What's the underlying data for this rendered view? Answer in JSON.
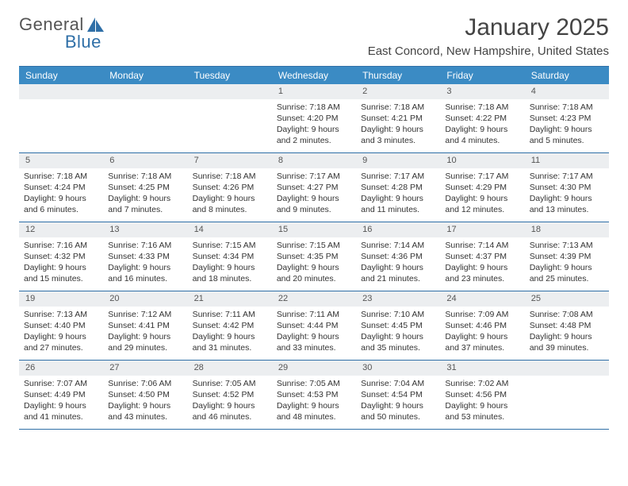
{
  "logo": {
    "text_general": "General",
    "text_blue": "Blue"
  },
  "title": "January 2025",
  "location": "East Concord, New Hampshire, United States",
  "colors": {
    "header_bg": "#3b8bc4",
    "border": "#2f6fa7",
    "daynum_bg": "#eceef0",
    "text": "#333333"
  },
  "day_headers": [
    "Sunday",
    "Monday",
    "Tuesday",
    "Wednesday",
    "Thursday",
    "Friday",
    "Saturday"
  ],
  "weeks": [
    [
      {
        "n": "",
        "sr": "",
        "ss": "",
        "dl1": "",
        "dl2": ""
      },
      {
        "n": "",
        "sr": "",
        "ss": "",
        "dl1": "",
        "dl2": ""
      },
      {
        "n": "",
        "sr": "",
        "ss": "",
        "dl1": "",
        "dl2": ""
      },
      {
        "n": "1",
        "sr": "Sunrise: 7:18 AM",
        "ss": "Sunset: 4:20 PM",
        "dl1": "Daylight: 9 hours",
        "dl2": "and 2 minutes."
      },
      {
        "n": "2",
        "sr": "Sunrise: 7:18 AM",
        "ss": "Sunset: 4:21 PM",
        "dl1": "Daylight: 9 hours",
        "dl2": "and 3 minutes."
      },
      {
        "n": "3",
        "sr": "Sunrise: 7:18 AM",
        "ss": "Sunset: 4:22 PM",
        "dl1": "Daylight: 9 hours",
        "dl2": "and 4 minutes."
      },
      {
        "n": "4",
        "sr": "Sunrise: 7:18 AM",
        "ss": "Sunset: 4:23 PM",
        "dl1": "Daylight: 9 hours",
        "dl2": "and 5 minutes."
      }
    ],
    [
      {
        "n": "5",
        "sr": "Sunrise: 7:18 AM",
        "ss": "Sunset: 4:24 PM",
        "dl1": "Daylight: 9 hours",
        "dl2": "and 6 minutes."
      },
      {
        "n": "6",
        "sr": "Sunrise: 7:18 AM",
        "ss": "Sunset: 4:25 PM",
        "dl1": "Daylight: 9 hours",
        "dl2": "and 7 minutes."
      },
      {
        "n": "7",
        "sr": "Sunrise: 7:18 AM",
        "ss": "Sunset: 4:26 PM",
        "dl1": "Daylight: 9 hours",
        "dl2": "and 8 minutes."
      },
      {
        "n": "8",
        "sr": "Sunrise: 7:17 AM",
        "ss": "Sunset: 4:27 PM",
        "dl1": "Daylight: 9 hours",
        "dl2": "and 9 minutes."
      },
      {
        "n": "9",
        "sr": "Sunrise: 7:17 AM",
        "ss": "Sunset: 4:28 PM",
        "dl1": "Daylight: 9 hours",
        "dl2": "and 11 minutes."
      },
      {
        "n": "10",
        "sr": "Sunrise: 7:17 AM",
        "ss": "Sunset: 4:29 PM",
        "dl1": "Daylight: 9 hours",
        "dl2": "and 12 minutes."
      },
      {
        "n": "11",
        "sr": "Sunrise: 7:17 AM",
        "ss": "Sunset: 4:30 PM",
        "dl1": "Daylight: 9 hours",
        "dl2": "and 13 minutes."
      }
    ],
    [
      {
        "n": "12",
        "sr": "Sunrise: 7:16 AM",
        "ss": "Sunset: 4:32 PM",
        "dl1": "Daylight: 9 hours",
        "dl2": "and 15 minutes."
      },
      {
        "n": "13",
        "sr": "Sunrise: 7:16 AM",
        "ss": "Sunset: 4:33 PM",
        "dl1": "Daylight: 9 hours",
        "dl2": "and 16 minutes."
      },
      {
        "n": "14",
        "sr": "Sunrise: 7:15 AM",
        "ss": "Sunset: 4:34 PM",
        "dl1": "Daylight: 9 hours",
        "dl2": "and 18 minutes."
      },
      {
        "n": "15",
        "sr": "Sunrise: 7:15 AM",
        "ss": "Sunset: 4:35 PM",
        "dl1": "Daylight: 9 hours",
        "dl2": "and 20 minutes."
      },
      {
        "n": "16",
        "sr": "Sunrise: 7:14 AM",
        "ss": "Sunset: 4:36 PM",
        "dl1": "Daylight: 9 hours",
        "dl2": "and 21 minutes."
      },
      {
        "n": "17",
        "sr": "Sunrise: 7:14 AM",
        "ss": "Sunset: 4:37 PM",
        "dl1": "Daylight: 9 hours",
        "dl2": "and 23 minutes."
      },
      {
        "n": "18",
        "sr": "Sunrise: 7:13 AM",
        "ss": "Sunset: 4:39 PM",
        "dl1": "Daylight: 9 hours",
        "dl2": "and 25 minutes."
      }
    ],
    [
      {
        "n": "19",
        "sr": "Sunrise: 7:13 AM",
        "ss": "Sunset: 4:40 PM",
        "dl1": "Daylight: 9 hours",
        "dl2": "and 27 minutes."
      },
      {
        "n": "20",
        "sr": "Sunrise: 7:12 AM",
        "ss": "Sunset: 4:41 PM",
        "dl1": "Daylight: 9 hours",
        "dl2": "and 29 minutes."
      },
      {
        "n": "21",
        "sr": "Sunrise: 7:11 AM",
        "ss": "Sunset: 4:42 PM",
        "dl1": "Daylight: 9 hours",
        "dl2": "and 31 minutes."
      },
      {
        "n": "22",
        "sr": "Sunrise: 7:11 AM",
        "ss": "Sunset: 4:44 PM",
        "dl1": "Daylight: 9 hours",
        "dl2": "and 33 minutes."
      },
      {
        "n": "23",
        "sr": "Sunrise: 7:10 AM",
        "ss": "Sunset: 4:45 PM",
        "dl1": "Daylight: 9 hours",
        "dl2": "and 35 minutes."
      },
      {
        "n": "24",
        "sr": "Sunrise: 7:09 AM",
        "ss": "Sunset: 4:46 PM",
        "dl1": "Daylight: 9 hours",
        "dl2": "and 37 minutes."
      },
      {
        "n": "25",
        "sr": "Sunrise: 7:08 AM",
        "ss": "Sunset: 4:48 PM",
        "dl1": "Daylight: 9 hours",
        "dl2": "and 39 minutes."
      }
    ],
    [
      {
        "n": "26",
        "sr": "Sunrise: 7:07 AM",
        "ss": "Sunset: 4:49 PM",
        "dl1": "Daylight: 9 hours",
        "dl2": "and 41 minutes."
      },
      {
        "n": "27",
        "sr": "Sunrise: 7:06 AM",
        "ss": "Sunset: 4:50 PM",
        "dl1": "Daylight: 9 hours",
        "dl2": "and 43 minutes."
      },
      {
        "n": "28",
        "sr": "Sunrise: 7:05 AM",
        "ss": "Sunset: 4:52 PM",
        "dl1": "Daylight: 9 hours",
        "dl2": "and 46 minutes."
      },
      {
        "n": "29",
        "sr": "Sunrise: 7:05 AM",
        "ss": "Sunset: 4:53 PM",
        "dl1": "Daylight: 9 hours",
        "dl2": "and 48 minutes."
      },
      {
        "n": "30",
        "sr": "Sunrise: 7:04 AM",
        "ss": "Sunset: 4:54 PM",
        "dl1": "Daylight: 9 hours",
        "dl2": "and 50 minutes."
      },
      {
        "n": "31",
        "sr": "Sunrise: 7:02 AM",
        "ss": "Sunset: 4:56 PM",
        "dl1": "Daylight: 9 hours",
        "dl2": "and 53 minutes."
      },
      {
        "n": "",
        "sr": "",
        "ss": "",
        "dl1": "",
        "dl2": ""
      }
    ]
  ]
}
